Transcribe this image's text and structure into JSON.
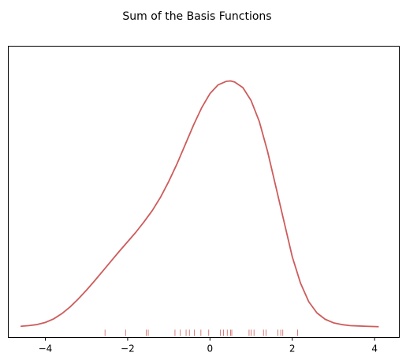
{
  "chart_data": {
    "type": "line",
    "title": "Sum of the Basis Functions",
    "xlabel": "",
    "ylabel": "",
    "xlim": [
      -4.9,
      4.6
    ],
    "ylim": [
      -0.03,
      0.8
    ],
    "x_ticks": [
      -4,
      -2,
      0,
      2,
      4
    ],
    "x_tick_labels": [
      "−4",
      "−2",
      "0",
      "2",
      "4"
    ],
    "y_ticks_visible": false,
    "grid": false,
    "line_color": "#cd5c5c",
    "series": [
      {
        "x": [
          -4.6,
          -4.4,
          -4.2,
          -4.0,
          -3.8,
          -3.6,
          -3.4,
          -3.2,
          -3.0,
          -2.8,
          -2.6,
          -2.4,
          -2.2,
          -2.0,
          -1.8,
          -1.6,
          -1.4,
          -1.2,
          -1.0,
          -0.8,
          -0.6,
          -0.4,
          -0.2,
          0.0,
          0.2,
          0.4,
          0.5,
          0.6,
          0.8,
          1.0,
          1.2,
          1.4,
          1.6,
          1.8,
          2.0,
          2.2,
          2.4,
          2.6,
          2.8,
          3.0,
          3.2,
          3.4,
          3.6,
          3.8,
          4.1
        ],
        "y": [
          0.002,
          0.004,
          0.007,
          0.013,
          0.023,
          0.038,
          0.057,
          0.08,
          0.105,
          0.132,
          0.16,
          0.188,
          0.216,
          0.243,
          0.27,
          0.3,
          0.332,
          0.37,
          0.415,
          0.465,
          0.52,
          0.575,
          0.625,
          0.665,
          0.69,
          0.7,
          0.701,
          0.698,
          0.682,
          0.645,
          0.585,
          0.5,
          0.4,
          0.3,
          0.2,
          0.125,
          0.072,
          0.04,
          0.022,
          0.012,
          0.007,
          0.004,
          0.003,
          0.002,
          0.001
        ]
      }
    ],
    "rug": [
      -2.55,
      -2.05,
      -1.55,
      -1.5,
      -0.85,
      -0.72,
      -0.58,
      -0.5,
      -0.38,
      -0.22,
      -0.03,
      0.25,
      0.33,
      0.42,
      0.5,
      0.53,
      0.95,
      1.0,
      1.07,
      1.3,
      1.36,
      1.65,
      1.72,
      1.77,
      2.13
    ]
  }
}
